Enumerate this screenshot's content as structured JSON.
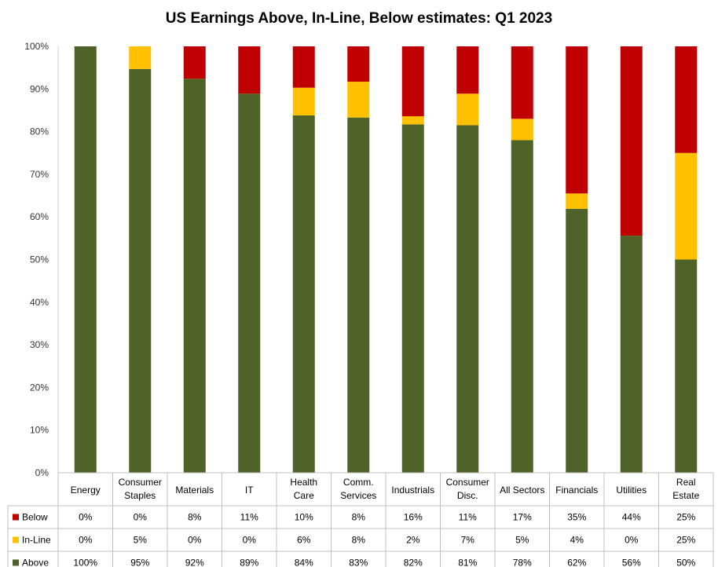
{
  "chart_data": {
    "type": "bar",
    "stacked": true,
    "title": "US Earnings Above, In-Line, Below estimates: Q1 2023",
    "categories": [
      [
        "Energy"
      ],
      [
        "Consumer",
        "Staples"
      ],
      [
        "Materials"
      ],
      [
        "IT"
      ],
      [
        "Health",
        "Care"
      ],
      [
        "Comm.",
        "Services"
      ],
      [
        "Industrials"
      ],
      [
        "Consumer",
        "Disc."
      ],
      [
        "All Sectors"
      ],
      [
        "Financials"
      ],
      [
        "Utilities"
      ],
      [
        "Real",
        "Estate"
      ]
    ],
    "ylim": [
      0,
      100
    ],
    "yticks": [
      "0%",
      "10%",
      "20%",
      "30%",
      "40%",
      "50%",
      "60%",
      "70%",
      "80%",
      "90%",
      "100%"
    ],
    "grid": false,
    "legend": "data-table",
    "series": [
      {
        "name": "Below",
        "color": "#c00000",
        "values": [
          0,
          0,
          8,
          11,
          10,
          8,
          16,
          11,
          17,
          35,
          44,
          25
        ],
        "labels": [
          "0%",
          "0%",
          "8%",
          "11%",
          "10%",
          "8%",
          "16%",
          "11%",
          "17%",
          "35%",
          "44%",
          "25%"
        ]
      },
      {
        "name": "In-Line",
        "color": "#ffc000",
        "values": [
          0,
          5,
          0,
          0,
          6,
          8,
          2,
          7,
          5,
          4,
          0,
          25
        ],
        "labels": [
          "0%",
          "5%",
          "0%",
          "0%",
          "6%",
          "8%",
          "2%",
          "7%",
          "5%",
          "4%",
          "0%",
          "25%"
        ]
      },
      {
        "name": "Above",
        "color": "#4f6228",
        "values": [
          100,
          95,
          92,
          89,
          84,
          83,
          82,
          81,
          78,
          62,
          56,
          50
        ],
        "labels": [
          "100%",
          "95%",
          "92%",
          "89%",
          "84%",
          "83%",
          "82%",
          "81%",
          "78%",
          "62%",
          "56%",
          "50%"
        ]
      }
    ],
    "plot_values_precise": {
      "Above": [
        100,
        94.7,
        92.4,
        88.9,
        83.8,
        83.3,
        81.7,
        81.5,
        78,
        61.9,
        55.6,
        50
      ],
      "In-Line": [
        0,
        5.3,
        0,
        0,
        6.5,
        8.4,
        1.9,
        7.4,
        5,
        3.6,
        0,
        25
      ]
    }
  }
}
